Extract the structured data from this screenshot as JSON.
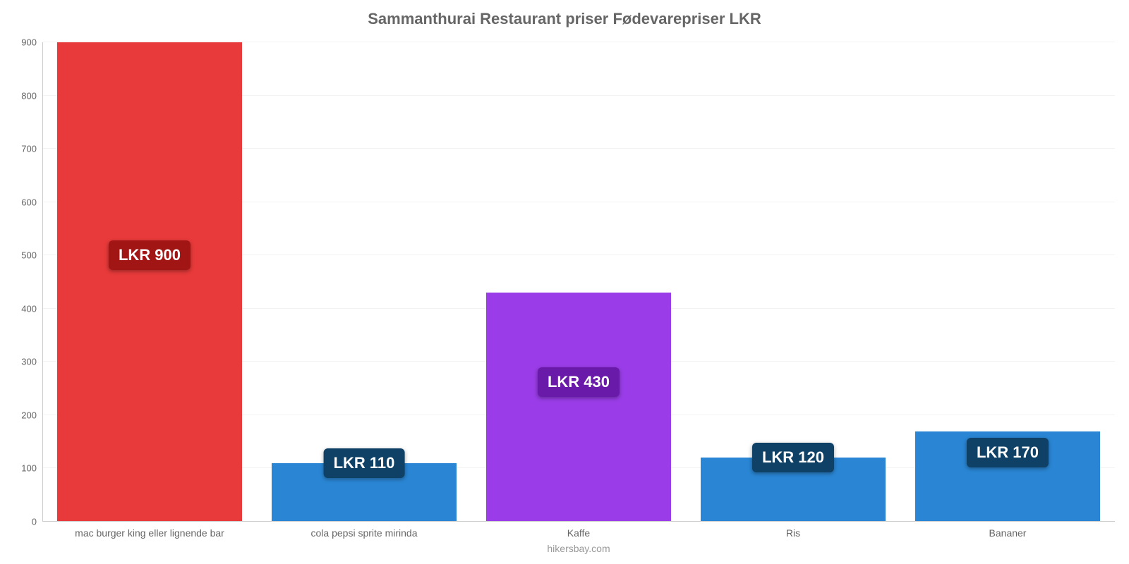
{
  "chart": {
    "type": "bar",
    "title": "Sammanthurai Restaurant priser Fødevarepriser LKR",
    "title_fontsize": 22,
    "title_color": "#666666",
    "axis_text_color": "#666666",
    "xlabel_text_color": "#666666",
    "background_color": "#ffffff",
    "grid_color": "#f3f3f3",
    "axis_line_color": "#cccccc",
    "ylim_min": 0,
    "ylim_max": 900,
    "ytick_step": 100,
    "bar_width_ratio": 0.86,
    "xlabel_fontsize": 14,
    "ylabel_fontsize": 13,
    "badge_fontsize": 22,
    "badge_text_color": "#ffffff",
    "footer": "hikersbay.com",
    "footer_color": "#999999",
    "categories": [
      "mac burger king eller lignende bar",
      "cola pepsi sprite mirinda",
      "Kaffe",
      "Ris",
      "Bananer"
    ],
    "values": [
      900,
      110,
      430,
      120,
      170
    ],
    "value_labels": [
      "LKR 900",
      "LKR 110",
      "LKR 430",
      "LKR 120",
      "LKR 170"
    ],
    "bar_colors": [
      "#e83a3a",
      "#2a86d4",
      "#9a3de8",
      "#2a86d4",
      "#2a86d4"
    ],
    "badge_colors": [
      "#a21515",
      "#0f4066",
      "#6a1aa8",
      "#0f4066",
      "#0f4066"
    ],
    "badge_y_values": [
      500,
      110,
      262,
      120,
      130
    ]
  }
}
